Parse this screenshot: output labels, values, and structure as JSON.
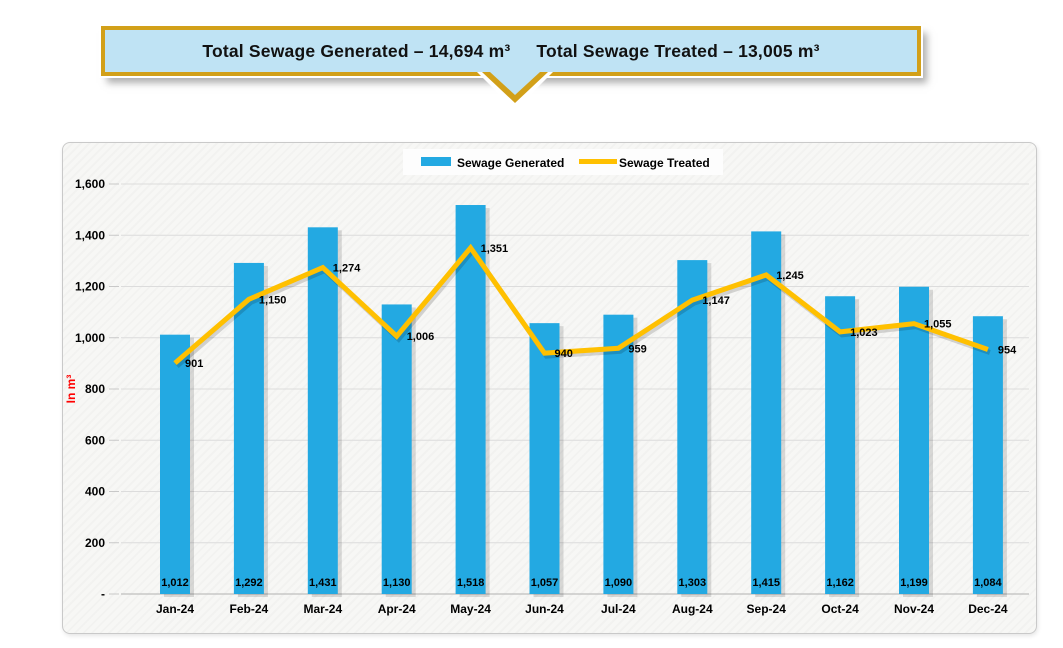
{
  "banner": {
    "title_generated": "Total Sewage Generated – 14,694 m³",
    "title_treated": "Total Sewage Treated – 13,005 m³"
  },
  "chart_data": {
    "type": "bar",
    "title": "",
    "categories": [
      "Jan-24",
      "Feb-24",
      "Mar-24",
      "Apr-24",
      "May-24",
      "Jun-24",
      "Jul-24",
      "Aug-24",
      "Sep-24",
      "Oct-24",
      "Nov-24",
      "Dec-24"
    ],
    "series": [
      {
        "name": "Sewage Generated",
        "type": "bar",
        "color": "#23a9e2",
        "values": [
          1012,
          1292,
          1431,
          1130,
          1518,
          1057,
          1090,
          1303,
          1415,
          1162,
          1199,
          1084
        ]
      },
      {
        "name": "Sewage Treated",
        "type": "line",
        "color": "#ffc000",
        "values": [
          901,
          1150,
          1274,
          1006,
          1351,
          940,
          959,
          1147,
          1245,
          1023,
          1055,
          954
        ]
      }
    ],
    "xlabel": "",
    "ylabel": "In m³",
    "ylim": [
      0,
      1600
    ],
    "ytick_interval": 200,
    "ytick_labels": [
      "-",
      "200",
      "400",
      "600",
      "800",
      "1,000",
      "1,200",
      "1,400",
      "1,600"
    ],
    "grid": true,
    "legend_position": "top-center",
    "data_labels": true
  },
  "colors": {
    "bar": "#23a9e2",
    "line": "#ffc000",
    "banner_fill": "#bfe3f4",
    "banner_border": "#d2a019",
    "axis_title": "#ff0000",
    "gridline": "#dcdcdc",
    "axis_line": "#bebebe",
    "label_text": "#000000"
  }
}
